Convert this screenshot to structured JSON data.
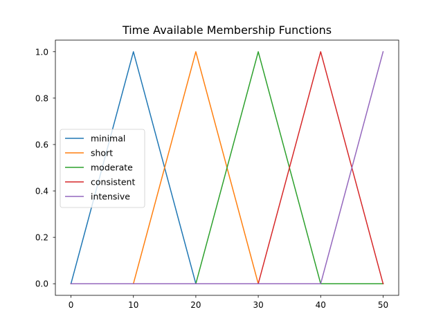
{
  "chart_data": {
    "type": "line",
    "title": "Time Available Membership Functions",
    "xlabel": "",
    "ylabel": "",
    "xlim": [
      -2.5,
      52.5
    ],
    "ylim": [
      -0.05,
      1.05
    ],
    "x_ticks": [
      0,
      10,
      20,
      30,
      40,
      50
    ],
    "y_ticks": [
      0.0,
      0.2,
      0.4,
      0.6,
      0.8,
      1.0
    ],
    "x_tick_labels": [
      "0",
      "10",
      "20",
      "30",
      "40",
      "50"
    ],
    "y_tick_labels": [
      "0.0",
      "0.2",
      "0.4",
      "0.6",
      "0.8",
      "1.0"
    ],
    "grid": false,
    "legend_position": "center-left",
    "series": [
      {
        "name": "minimal",
        "color": "#1f77b4",
        "x": [
          0,
          10,
          20,
          30,
          40,
          50
        ],
        "y": [
          0,
          1,
          0,
          0,
          0,
          0
        ]
      },
      {
        "name": "short",
        "color": "#ff7f0e",
        "x": [
          0,
          10,
          20,
          30,
          40,
          50
        ],
        "y": [
          0,
          0,
          1,
          0,
          0,
          0
        ]
      },
      {
        "name": "moderate",
        "color": "#2ca02c",
        "x": [
          0,
          10,
          20,
          30,
          40,
          50
        ],
        "y": [
          0,
          0,
          0,
          1,
          0,
          0
        ]
      },
      {
        "name": "consistent",
        "color": "#d62728",
        "x": [
          0,
          10,
          20,
          30,
          40,
          50
        ],
        "y": [
          0,
          0,
          0,
          0,
          1,
          0
        ]
      },
      {
        "name": "intensive",
        "color": "#9467bd",
        "x": [
          0,
          10,
          20,
          30,
          40,
          50
        ],
        "y": [
          0,
          0,
          0,
          0,
          0,
          1
        ]
      }
    ]
  }
}
